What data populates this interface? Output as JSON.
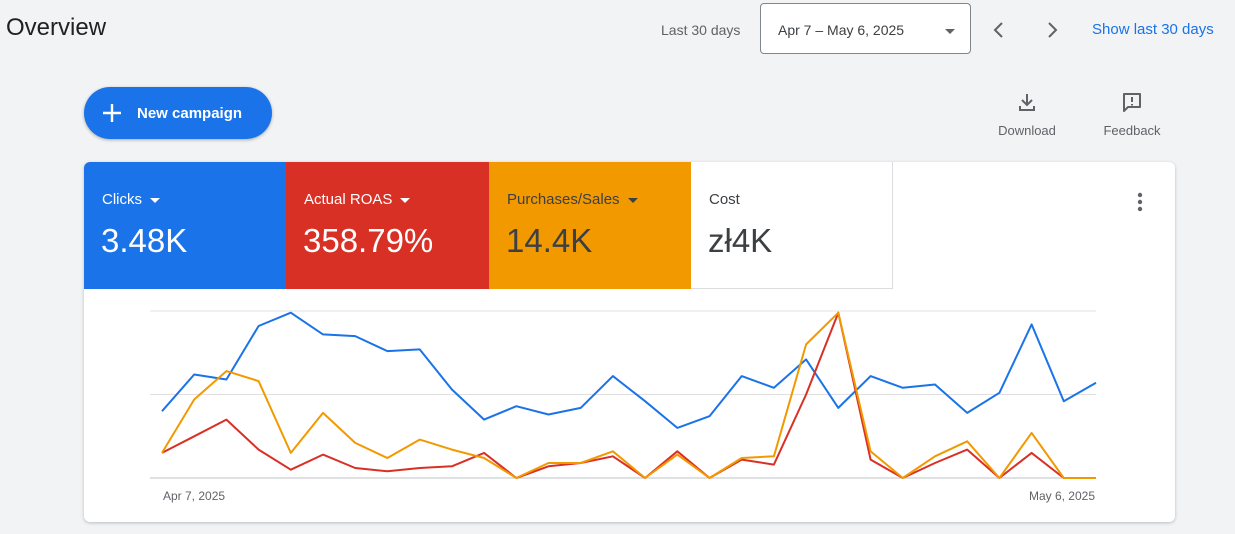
{
  "header": {
    "title": "Overview",
    "range_label": "Last 30 days",
    "date_range": "Apr 7 – May 6, 2025",
    "show_last": "Show last 30 days",
    "icons": [
      "chevron-left-icon",
      "chevron-right-icon",
      "dropdown-caret-icon"
    ]
  },
  "actions": {
    "new_campaign": "New campaign",
    "download": "Download",
    "feedback": "Feedback"
  },
  "metrics": [
    {
      "label": "Clicks",
      "value": "3.48K",
      "color": "#1a73e8"
    },
    {
      "label": "Actual ROAS",
      "value": "358.79%",
      "color": "#d93025"
    },
    {
      "label": "Purchases/Sales",
      "value": "14.4K",
      "color": "#f29900"
    },
    {
      "label": "Cost",
      "value": "zł4K",
      "color": "#ffffff"
    }
  ],
  "chart_data": {
    "type": "line",
    "x_start_label": "Apr 7, 2025",
    "x_end_label": "May 6, 2025",
    "ylim": [
      0,
      100
    ],
    "grid": true,
    "series": [
      {
        "color": "#1a73e8",
        "values": [
          40,
          62,
          59,
          91,
          99,
          86,
          85,
          76,
          77,
          53,
          35,
          43,
          38,
          42,
          61,
          46,
          30,
          37,
          61,
          54,
          71,
          42,
          61,
          54,
          56,
          39,
          51,
          92,
          46,
          57
        ]
      },
      {
        "color": "#d93025",
        "values": [
          15,
          25,
          35,
          17,
          5,
          14,
          6,
          4,
          6,
          7,
          15,
          0,
          7,
          9,
          13,
          0,
          16,
          0,
          11,
          8,
          50,
          99,
          11,
          0,
          9,
          17,
          0,
          15,
          0,
          0
        ]
      },
      {
        "color": "#f29900",
        "values": [
          15,
          47,
          64,
          58,
          15,
          39,
          21,
          12,
          23,
          17,
          12,
          0,
          9,
          9,
          16,
          0,
          14,
          0,
          12,
          13,
          80,
          99,
          16,
          0,
          13,
          22,
          0,
          27,
          0,
          0
        ]
      }
    ]
  }
}
